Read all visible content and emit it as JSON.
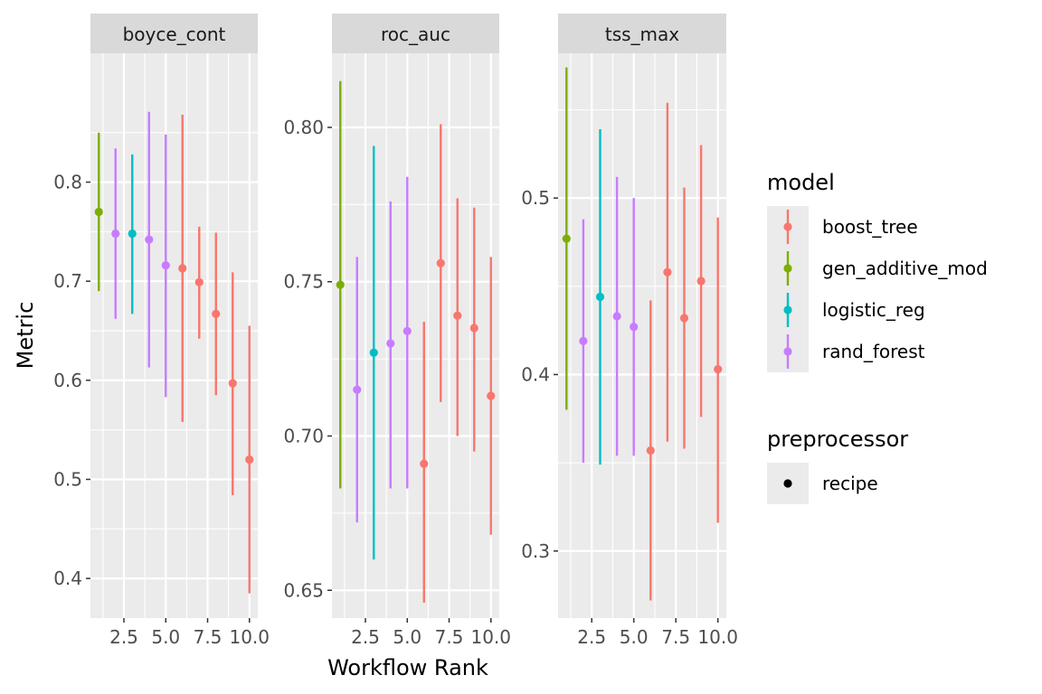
{
  "chart_data": {
    "type": "scatter",
    "xlabel": "Workflow Rank",
    "ylabel": "Metric",
    "x_ticks": [
      2.5,
      5.0,
      7.5,
      10.0
    ],
    "x_tick_labels": [
      "2.5",
      "5.0",
      "7.5",
      "10.0"
    ],
    "xlim": [
      0.5,
      10.5
    ],
    "model_colors": {
      "boost_tree": "#F8766D",
      "gen_additive_mod": "#7CAE00",
      "logistic_reg": "#00BFC4",
      "rand_forest": "#C77CFF"
    },
    "legend": {
      "model_title": "model",
      "models": [
        "boost_tree",
        "gen_additive_mod",
        "logistic_reg",
        "rand_forest"
      ],
      "preprocessor_title": "preprocessor",
      "preprocessors": [
        "recipe"
      ]
    },
    "panels": [
      {
        "name": "boyce_cont",
        "ylim": [
          0.36,
          0.93
        ],
        "y_ticks": [
          0.4,
          0.5,
          0.6,
          0.7,
          0.8
        ],
        "y_tick_labels": [
          "0.4",
          "0.5",
          "0.6",
          "0.7",
          "0.8"
        ],
        "points": [
          {
            "rank": 1,
            "model": "gen_additive_mod",
            "mean": 0.77,
            "lower": 0.69,
            "upper": 0.85
          },
          {
            "rank": 2,
            "model": "rand_forest",
            "mean": 0.748,
            "lower": 0.662,
            "upper": 0.834
          },
          {
            "rank": 3,
            "model": "logistic_reg",
            "mean": 0.748,
            "lower": 0.667,
            "upper": 0.828
          },
          {
            "rank": 4,
            "model": "rand_forest",
            "mean": 0.742,
            "lower": 0.613,
            "upper": 0.871
          },
          {
            "rank": 5,
            "model": "rand_forest",
            "mean": 0.716,
            "lower": 0.583,
            "upper": 0.848
          },
          {
            "rank": 6,
            "model": "boost_tree",
            "mean": 0.713,
            "lower": 0.558,
            "upper": 0.868
          },
          {
            "rank": 7,
            "model": "boost_tree",
            "mean": 0.699,
            "lower": 0.642,
            "upper": 0.755
          },
          {
            "rank": 8,
            "model": "boost_tree",
            "mean": 0.667,
            "lower": 0.585,
            "upper": 0.749
          },
          {
            "rank": 9,
            "model": "boost_tree",
            "mean": 0.597,
            "lower": 0.484,
            "upper": 0.709
          },
          {
            "rank": 10,
            "model": "boost_tree",
            "mean": 0.52,
            "lower": 0.385,
            "upper": 0.655
          }
        ]
      },
      {
        "name": "roc_auc",
        "ylim": [
          0.641,
          0.824
        ],
        "y_ticks": [
          0.65,
          0.7,
          0.75,
          0.8
        ],
        "y_tick_labels": [
          "0.65",
          "0.70",
          "0.75",
          "0.80"
        ],
        "points": [
          {
            "rank": 1,
            "model": "gen_additive_mod",
            "mean": 0.749,
            "lower": 0.683,
            "upper": 0.815
          },
          {
            "rank": 2,
            "model": "rand_forest",
            "mean": 0.715,
            "lower": 0.672,
            "upper": 0.758
          },
          {
            "rank": 3,
            "model": "logistic_reg",
            "mean": 0.727,
            "lower": 0.66,
            "upper": 0.794
          },
          {
            "rank": 4,
            "model": "rand_forest",
            "mean": 0.73,
            "lower": 0.683,
            "upper": 0.776
          },
          {
            "rank": 5,
            "model": "rand_forest",
            "mean": 0.734,
            "lower": 0.683,
            "upper": 0.784
          },
          {
            "rank": 6,
            "model": "boost_tree",
            "mean": 0.691,
            "lower": 0.646,
            "upper": 0.737
          },
          {
            "rank": 7,
            "model": "boost_tree",
            "mean": 0.756,
            "lower": 0.711,
            "upper": 0.801
          },
          {
            "rank": 8,
            "model": "boost_tree",
            "mean": 0.739,
            "lower": 0.7,
            "upper": 0.777
          },
          {
            "rank": 9,
            "model": "boost_tree",
            "mean": 0.735,
            "lower": 0.695,
            "upper": 0.774
          },
          {
            "rank": 10,
            "model": "boost_tree",
            "mean": 0.713,
            "lower": 0.668,
            "upper": 0.758
          }
        ]
      },
      {
        "name": "tss_max",
        "ylim": [
          0.262,
          0.582
        ],
        "y_ticks": [
          0.3,
          0.4,
          0.5
        ],
        "y_tick_labels": [
          "0.3",
          "0.4",
          "0.5"
        ],
        "points": [
          {
            "rank": 1,
            "model": "gen_additive_mod",
            "mean": 0.477,
            "lower": 0.38,
            "upper": 0.574
          },
          {
            "rank": 2,
            "model": "rand_forest",
            "mean": 0.419,
            "lower": 0.35,
            "upper": 0.488
          },
          {
            "rank": 3,
            "model": "logistic_reg",
            "mean": 0.444,
            "lower": 0.349,
            "upper": 0.539
          },
          {
            "rank": 4,
            "model": "rand_forest",
            "mean": 0.433,
            "lower": 0.354,
            "upper": 0.512
          },
          {
            "rank": 5,
            "model": "rand_forest",
            "mean": 0.427,
            "lower": 0.354,
            "upper": 0.5
          },
          {
            "rank": 6,
            "model": "boost_tree",
            "mean": 0.357,
            "lower": 0.272,
            "upper": 0.442
          },
          {
            "rank": 7,
            "model": "boost_tree",
            "mean": 0.458,
            "lower": 0.362,
            "upper": 0.554
          },
          {
            "rank": 8,
            "model": "boost_tree",
            "mean": 0.432,
            "lower": 0.358,
            "upper": 0.506
          },
          {
            "rank": 9,
            "model": "boost_tree",
            "mean": 0.453,
            "lower": 0.376,
            "upper": 0.53
          },
          {
            "rank": 10,
            "model": "boost_tree",
            "mean": 0.403,
            "lower": 0.316,
            "upper": 0.489
          }
        ]
      }
    ]
  }
}
